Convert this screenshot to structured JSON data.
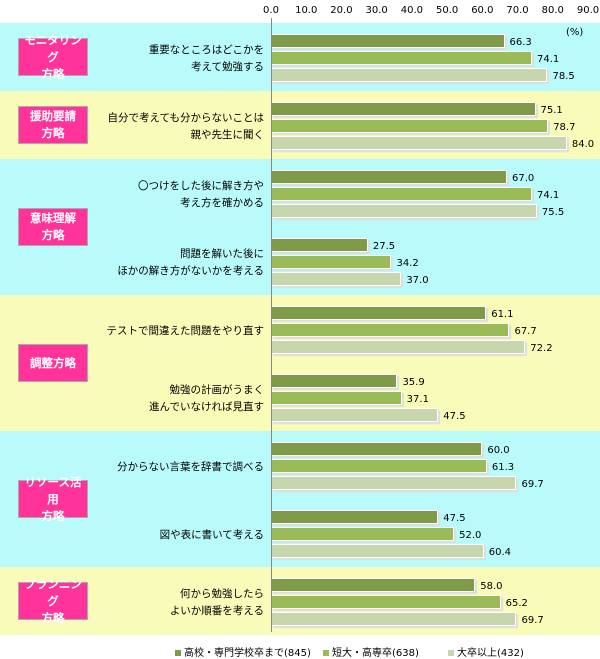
{
  "chart_data": {
    "type": "bar",
    "orientation": "horizontal",
    "unit": "(%)",
    "xlim": [
      0,
      90
    ],
    "ticks": [
      "0.0",
      "10.0",
      "20.0",
      "30.0",
      "40.0",
      "50.0",
      "60.0",
      "70.0",
      "80.0",
      "90.0"
    ],
    "groups": [
      {
        "label": [
          "モニタリング",
          "方略"
        ],
        "band_color": "#b9fbfb",
        "items": [
          {
            "label": [
              "重要なところはどこかを",
              "考えて勉強する"
            ],
            "values": [
              66.3,
              74.1,
              78.5
            ]
          }
        ]
      },
      {
        "label": [
          "援助要請",
          "方略"
        ],
        "band_color": "#f8fcb8",
        "items": [
          {
            "label": [
              "自分で考えても分からないことは",
              "親や先生に聞く"
            ],
            "values": [
              75.1,
              78.7,
              84.0
            ]
          }
        ]
      },
      {
        "label": [
          "意味理解",
          "方略"
        ],
        "band_color": "#b9fbfb",
        "items": [
          {
            "label": [
              "〇つけをした後に解き方や",
              "考え方を確かめる"
            ],
            "values": [
              67.0,
              74.1,
              75.5
            ]
          },
          {
            "label": [
              "問題を解いた後に",
              "ほかの解き方がないかを考える"
            ],
            "values": [
              27.5,
              34.2,
              37.0
            ]
          }
        ]
      },
      {
        "label": [
          "調整方略"
        ],
        "band_color": "#f8fcb8",
        "items": [
          {
            "label": [
              "テストで間違えた問題をやり直す"
            ],
            "values": [
              61.1,
              67.7,
              72.2
            ]
          },
          {
            "label": [
              "勉強の計画がうまく",
              "進んでいなければ見直す"
            ],
            "values": [
              35.9,
              37.1,
              47.5
            ]
          }
        ]
      },
      {
        "label": [
          "リソース活用",
          "方略"
        ],
        "band_color": "#b9fbfb",
        "items": [
          {
            "label": [
              "分からない言葉を辞書で調べる"
            ],
            "values": [
              60.0,
              61.3,
              69.7
            ]
          },
          {
            "label": [
              "図や表に書いて考える"
            ],
            "values": [
              47.5,
              52.0,
              60.4
            ]
          }
        ]
      },
      {
        "label": [
          "プランニング",
          "方略"
        ],
        "band_color": "#f8fcb8",
        "items": [
          {
            "label": [
              "何から勉強したら",
              "よいか順番を考える"
            ],
            "values": [
              58.0,
              65.2,
              69.7
            ]
          }
        ]
      }
    ],
    "series": [
      {
        "name": "高校・専門学校卒まで(845)",
        "color": "#7f9a48"
      },
      {
        "name": "短大・高専卒(638)",
        "color": "#9bbb59"
      },
      {
        "name": "大卒以上(432)",
        "color": "#c8d6ad"
      }
    ],
    "legend": "bottom"
  }
}
